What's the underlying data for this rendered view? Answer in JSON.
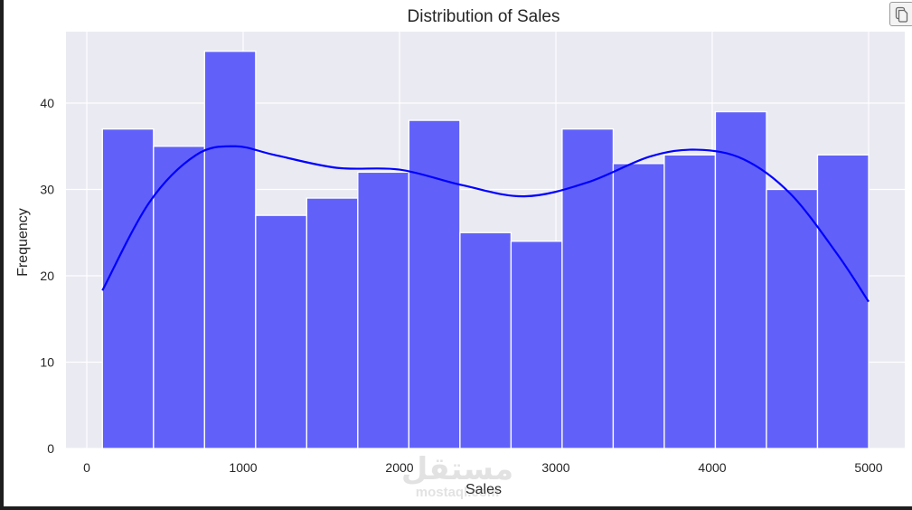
{
  "notebook": {
    "copy_button_label": "Copy"
  },
  "watermark": {
    "arabic": "مستقل",
    "latin": "mostaql.com"
  },
  "colors": {
    "plot_bg": "#eaeaf2",
    "grid": "#ffffff",
    "bar_fill": "#5e5efa",
    "bar_edge": "#ffffff",
    "kde_line": "#0000ff",
    "text": "#262626"
  },
  "chart_data": {
    "type": "bar",
    "subtype": "histogram_with_kde",
    "title": "Distribution of Sales",
    "xlabel": "Sales",
    "ylabel": "Frequency",
    "xlim": [
      -100,
      5250
    ],
    "ylim": [
      0,
      48
    ],
    "xticks": [
      0,
      1000,
      2000,
      3000,
      4000,
      5000
    ],
    "yticks": [
      0,
      10,
      20,
      30,
      40
    ],
    "grid": true,
    "legend": null,
    "bins": {
      "start": 100,
      "end": 5000,
      "count": 15,
      "edges": [
        100,
        426.7,
        753.3,
        1080,
        1406.7,
        1733.3,
        2060,
        2386.7,
        2713.3,
        3040,
        3366.7,
        3693.3,
        4020,
        4346.7,
        4673.3,
        5000
      ]
    },
    "categories": [
      "100-427",
      "427-753",
      "753-1080",
      "1080-1407",
      "1407-1733",
      "1733-2060",
      "2060-2387",
      "2387-2713",
      "2713-3040",
      "3040-3367",
      "3367-3693",
      "3693-4020",
      "4020-4347",
      "4347-4673",
      "4673-5000"
    ],
    "values": [
      37,
      35,
      46,
      27,
      29,
      32,
      38,
      25,
      24,
      37,
      33,
      34,
      39,
      30,
      34
    ],
    "kde": {
      "x": [
        100,
        400,
        700,
        950,
        1200,
        1600,
        2000,
        2400,
        2800,
        3200,
        3600,
        3900,
        4200,
        4500,
        4800,
        5000
      ],
      "y": [
        18.3,
        28.5,
        34.0,
        35.0,
        34.0,
        32.5,
        32.3,
        30.5,
        29.2,
        30.8,
        33.8,
        34.6,
        33.5,
        29.5,
        22.5,
        17.0
      ]
    }
  }
}
